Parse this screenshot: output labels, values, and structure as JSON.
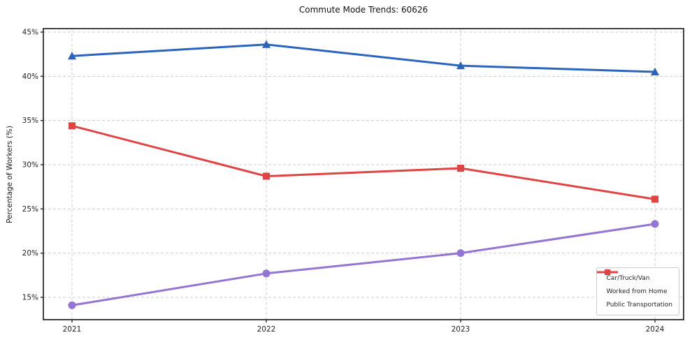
{
  "figure": {
    "title": "Commute Mode Trends: 60626",
    "ylabel": "Percentage of Workers (%)"
  },
  "chart_data": {
    "type": "line",
    "title": "Commute Mode Trends: 60626",
    "xlabel": "",
    "ylabel": "Percentage of Workers (%)",
    "x_labels": [
      "2021",
      "2022",
      "2023",
      "2024"
    ],
    "series": [
      {
        "name": "Car/Truck/Van",
        "marker": "triangle",
        "color": "#2a64bd",
        "values": [
          42.3,
          43.6,
          41.2,
          40.5
        ]
      },
      {
        "name": "Worked from Home",
        "marker": "circle",
        "color": "#9474d4",
        "values": [
          14.1,
          17.7,
          20.0,
          23.3
        ]
      },
      {
        "name": "Public Transportation",
        "marker": "square",
        "color": "#e04343",
        "values": [
          34.4,
          28.7,
          29.6,
          26.1
        ]
      }
    ],
    "y_ticks": [
      "15%",
      "20%",
      "25%",
      "30%",
      "35%",
      "40%",
      "45%"
    ],
    "y_tick_values": [
      15,
      20,
      25,
      30,
      35,
      40,
      45
    ],
    "ylim": [
      12.5,
      45.4
    ],
    "grid": "dashed-both-axes",
    "legend_position": "lower right",
    "colors": {
      "grid": "#cccccc",
      "spine": "#2b2b2b",
      "tick_label": "#222222"
    }
  }
}
